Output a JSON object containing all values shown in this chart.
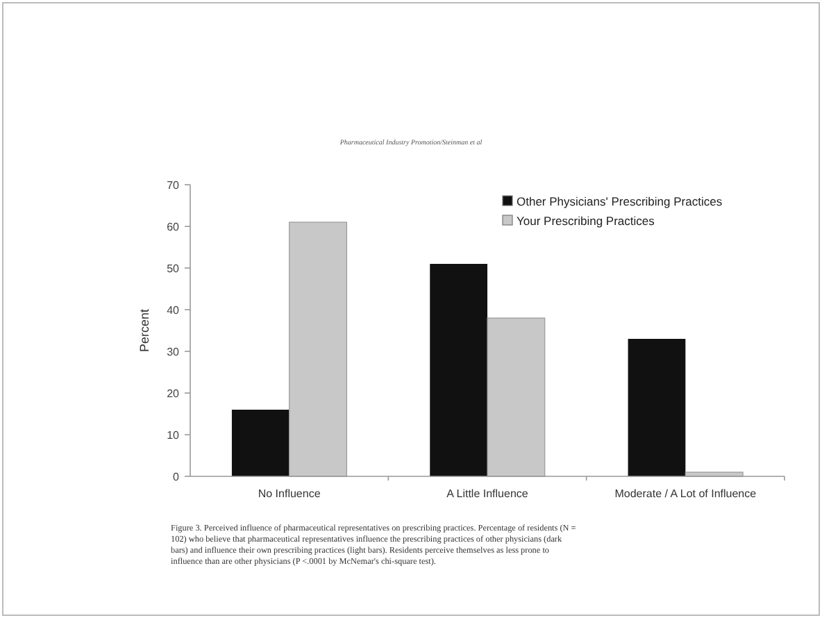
{
  "chart_data": {
    "type": "bar",
    "subtitle": "Pharmaceutical Industry Promotion/Steinman et al",
    "ylabel": "Percent",
    "categories": [
      "No Influence",
      "A Little Influence",
      "Moderate / A Lot of Influence"
    ],
    "series": [
      {
        "name": "Other Physicians' Prescribing Practices",
        "color": "#111111",
        "values": [
          16,
          51,
          33
        ]
      },
      {
        "name": "Your Prescribing Practices",
        "color": "#c8c8c8",
        "values": [
          61,
          38,
          1
        ]
      }
    ],
    "ylim": [
      0,
      70
    ],
    "yticks": [
      0,
      10,
      20,
      30,
      40,
      50,
      60,
      70
    ],
    "grid": false,
    "legend": "top right",
    "annotations": [
      "Figure 3. Perceived influence of pharmaceutical representatives on prescribing practices. Percentage of residents (N = 102) who believe that pharmaceutical representatives influence the prescribing practices of other physicians (dark bars) and influence their own prescribing practices (light bars). Residents perceive themselves as less prone to influence than are other physicians (P <.0001 by McNemar's chi-square test)."
    ]
  }
}
